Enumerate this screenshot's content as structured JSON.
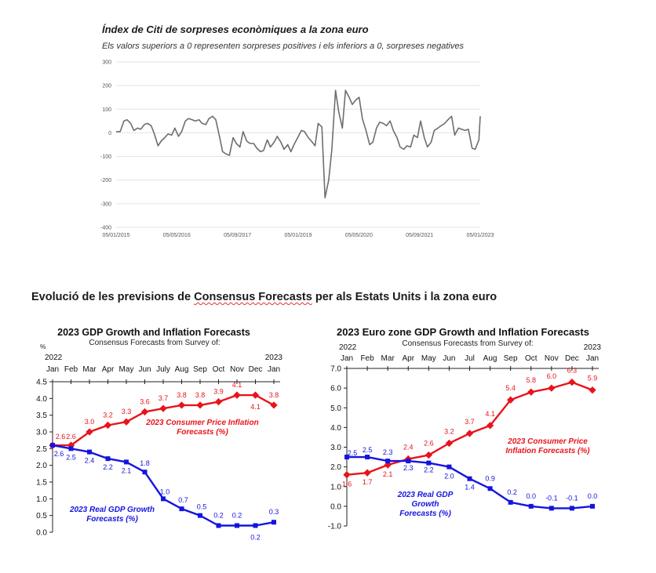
{
  "citi": {
    "title": "Índex de Citi de sorpreses econòmiques a la zona euro",
    "subtitle": "Els valors superiors a 0 representen sorpreses positives i els inferiors a 0, sorpreses negatives"
  },
  "section": {
    "title_pre": "Evolució de les previsions de ",
    "title_link": "Consensus Forecasts",
    "title_post": " per als Estats Units i la zona euro"
  },
  "colors": {
    "inflation": "#e8141b",
    "gdp": "#1414e0",
    "citi_line": "#6e6e6e",
    "grid": "#e3e3e3"
  },
  "chart_data": [
    {
      "type": "line",
      "title": "Índex de Citi de sorpreses econòmiques a la zona euro",
      "subtitle": "Els valors superiors a 0 representen sorpreses positives i els inferiors a 0, sorpreses negatives",
      "x_ticks": [
        "05/01/2015",
        "05/05/2016",
        "05/09/2017",
        "05/01/2019",
        "05/05/2020",
        "05/09/2021",
        "05/01/2023"
      ],
      "y_ticks": [
        "300",
        "200",
        "100",
        "0",
        "-100",
        "-200",
        "-300",
        "-400"
      ],
      "ylim": [
        -400,
        300
      ],
      "grid": true,
      "x_range_years": [
        2015.01,
        2023.01
      ],
      "series": [
        {
          "x": [
            2015.01,
            2015.1,
            2015.18,
            2015.25,
            2015.33,
            2015.4,
            2015.48,
            2015.55,
            2015.63,
            2015.7,
            2015.78,
            2015.85,
            2015.93,
            2016.0,
            2016.08,
            2016.15,
            2016.23,
            2016.3,
            2016.38,
            2016.45,
            2016.53,
            2016.6,
            2016.68,
            2016.75,
            2016.83,
            2016.9,
            2016.98,
            2017.05,
            2017.13,
            2017.2,
            2017.28,
            2017.35,
            2017.43,
            2017.5,
            2017.58,
            2017.65,
            2017.73,
            2017.8,
            2017.88,
            2017.95,
            2018.03,
            2018.1,
            2018.18,
            2018.25,
            2018.33,
            2018.4,
            2018.48,
            2018.55,
            2018.63,
            2018.7,
            2018.78,
            2018.85,
            2018.93,
            2019.0,
            2019.08,
            2019.15,
            2019.23,
            2019.3,
            2019.38,
            2019.45,
            2019.53,
            2019.6,
            2019.68,
            2019.75,
            2019.83,
            2019.9,
            2019.98,
            2020.05,
            2020.13,
            2020.2,
            2020.28,
            2020.35,
            2020.42,
            2020.5,
            2020.58,
            2020.65,
            2020.73,
            2020.8,
            2020.88,
            2020.95,
            2021.03,
            2021.1,
            2021.18,
            2021.25,
            2021.33,
            2021.4,
            2021.48,
            2021.55,
            2021.63,
            2021.7,
            2021.78,
            2021.85,
            2021.93,
            2022.0,
            2022.08,
            2022.15,
            2022.23,
            2022.3,
            2022.38,
            2022.45,
            2022.53,
            2022.6,
            2022.68,
            2022.75,
            2022.83,
            2022.9,
            2022.98,
            2023.01
          ],
          "values": [
            5,
            5,
            50,
            55,
            40,
            10,
            20,
            15,
            35,
            40,
            30,
            -5,
            -55,
            -35,
            -20,
            -5,
            -10,
            20,
            -15,
            5,
            50,
            60,
            55,
            50,
            55,
            40,
            35,
            60,
            70,
            55,
            -15,
            -80,
            -90,
            -95,
            -20,
            -45,
            -60,
            5,
            -35,
            -45,
            -45,
            -65,
            -80,
            -75,
            -30,
            -60,
            -40,
            -15,
            -40,
            -70,
            -50,
            -80,
            -45,
            -20,
            10,
            5,
            -20,
            -35,
            -55,
            40,
            25,
            -275,
            -200,
            -70,
            180,
            90,
            20,
            180,
            150,
            120,
            140,
            150,
            60,
            10,
            -50,
            -40,
            20,
            45,
            40,
            30,
            50,
            10,
            -20,
            -60,
            -70,
            -55,
            -60,
            -10,
            -20,
            50,
            -20,
            -60,
            -40,
            10,
            20,
            30,
            40,
            55,
            70,
            -10,
            20,
            15,
            10,
            15,
            -65,
            -70,
            -30,
            70
          ]
        }
      ]
    },
    {
      "type": "line",
      "title": "2023 GDP Growth and Inflation Forecasts",
      "subtitle": "Consensus Forecasts from Survey of:",
      "ylabel": "%",
      "year_left": "2022",
      "year_right": "2023",
      "categories": [
        "Jan",
        "Feb",
        "Mar",
        "Apr",
        "May",
        "Jun",
        "July",
        "Aug",
        "Sep",
        "Oct",
        "Nov",
        "Dec",
        "Jan"
      ],
      "y_ticks": [
        "4.5",
        "4.0",
        "3.5",
        "3.0",
        "2.5",
        "2.0",
        "1.5",
        "1.0",
        "0.5",
        "0.0"
      ],
      "ylim": [
        0,
        4.5
      ],
      "series": [
        {
          "name": "2023 Consumer Price Inflation Forecasts (%)",
          "name_lines": [
            "2023 Consumer Price Inflation",
            "Forecasts (%)"
          ],
          "values": [
            2.6,
            2.6,
            3.0,
            3.2,
            3.3,
            3.6,
            3.7,
            3.8,
            3.8,
            3.9,
            4.1,
            4.1,
            3.8
          ],
          "labels": [
            "2.6",
            "2.6",
            "3.0",
            "3.2",
            "3.3",
            "3.6",
            "3.7",
            "3.8",
            "3.8",
            "3.9",
            "4.1",
            "4.1",
            "3.8"
          ]
        },
        {
          "name": "2023 Real GDP Growth Forecasts (%)",
          "name_lines": [
            "2023 Real GDP Growth",
            "Forecasts (%)"
          ],
          "values": [
            2.6,
            2.5,
            2.4,
            2.2,
            2.1,
            1.8,
            1.0,
            0.7,
            0.5,
            0.2,
            0.2,
            0.2,
            0.3
          ],
          "labels": [
            "2.6",
            "2.5",
            "2.4",
            "2.2",
            "2.1",
            "1.8",
            "1.0",
            "0.7",
            "0.5",
            "0.2",
            "0.2",
            "0.2",
            "0.3"
          ]
        }
      ]
    },
    {
      "type": "line",
      "title": "2023 Euro zone GDP Growth and Inflation Forecasts",
      "subtitle": "Consensus Forecasts from Survey of:",
      "year_left": "2022",
      "year_right": "2023",
      "categories": [
        "Jan",
        "Feb",
        "Mar",
        "Apr",
        "May",
        "Jun",
        "Jul",
        "Aug",
        "Sep",
        "Oct",
        "Nov",
        "Dec",
        "Jan"
      ],
      "y_ticks": [
        "7.0",
        "6.0",
        "5.0",
        "4.0",
        "3.0",
        "2.0",
        "1.0",
        "0.0",
        "-1.0"
      ],
      "ylim": [
        -1.0,
        7.0
      ],
      "series": [
        {
          "name": "2023 Consumer Price Inflation Forecasts (%)",
          "name_lines": [
            "2023 Consumer Price",
            "Inflation Forecasts (%)"
          ],
          "values": [
            1.6,
            1.7,
            2.1,
            2.4,
            2.6,
            3.2,
            3.7,
            4.1,
            5.4,
            5.8,
            6.0,
            6.3,
            5.9
          ],
          "labels": [
            "1.6",
            "1.7",
            "2.1",
            "2.4",
            "2.6",
            "3.2",
            "3.7",
            "4.1",
            "5.4",
            "5.8",
            "6.0",
            "6.3",
            "5.9"
          ]
        },
        {
          "name": "2023 Real GDP Growth Forecasts (%)",
          "name_lines": [
            "2023 Real GDP",
            "Growth",
            "Forecasts (%)"
          ],
          "values": [
            2.5,
            2.5,
            2.3,
            2.3,
            2.2,
            2.0,
            1.4,
            0.9,
            0.2,
            0.0,
            -0.1,
            -0.1,
            0.0
          ],
          "labels": [
            "2.5",
            "2.5",
            "2.3",
            "2.3",
            "2.2",
            "2.0",
            "1.4",
            "0.9",
            "0.2",
            "0.0",
            "-0.1",
            "-0.1",
            "0.0"
          ]
        }
      ]
    }
  ]
}
